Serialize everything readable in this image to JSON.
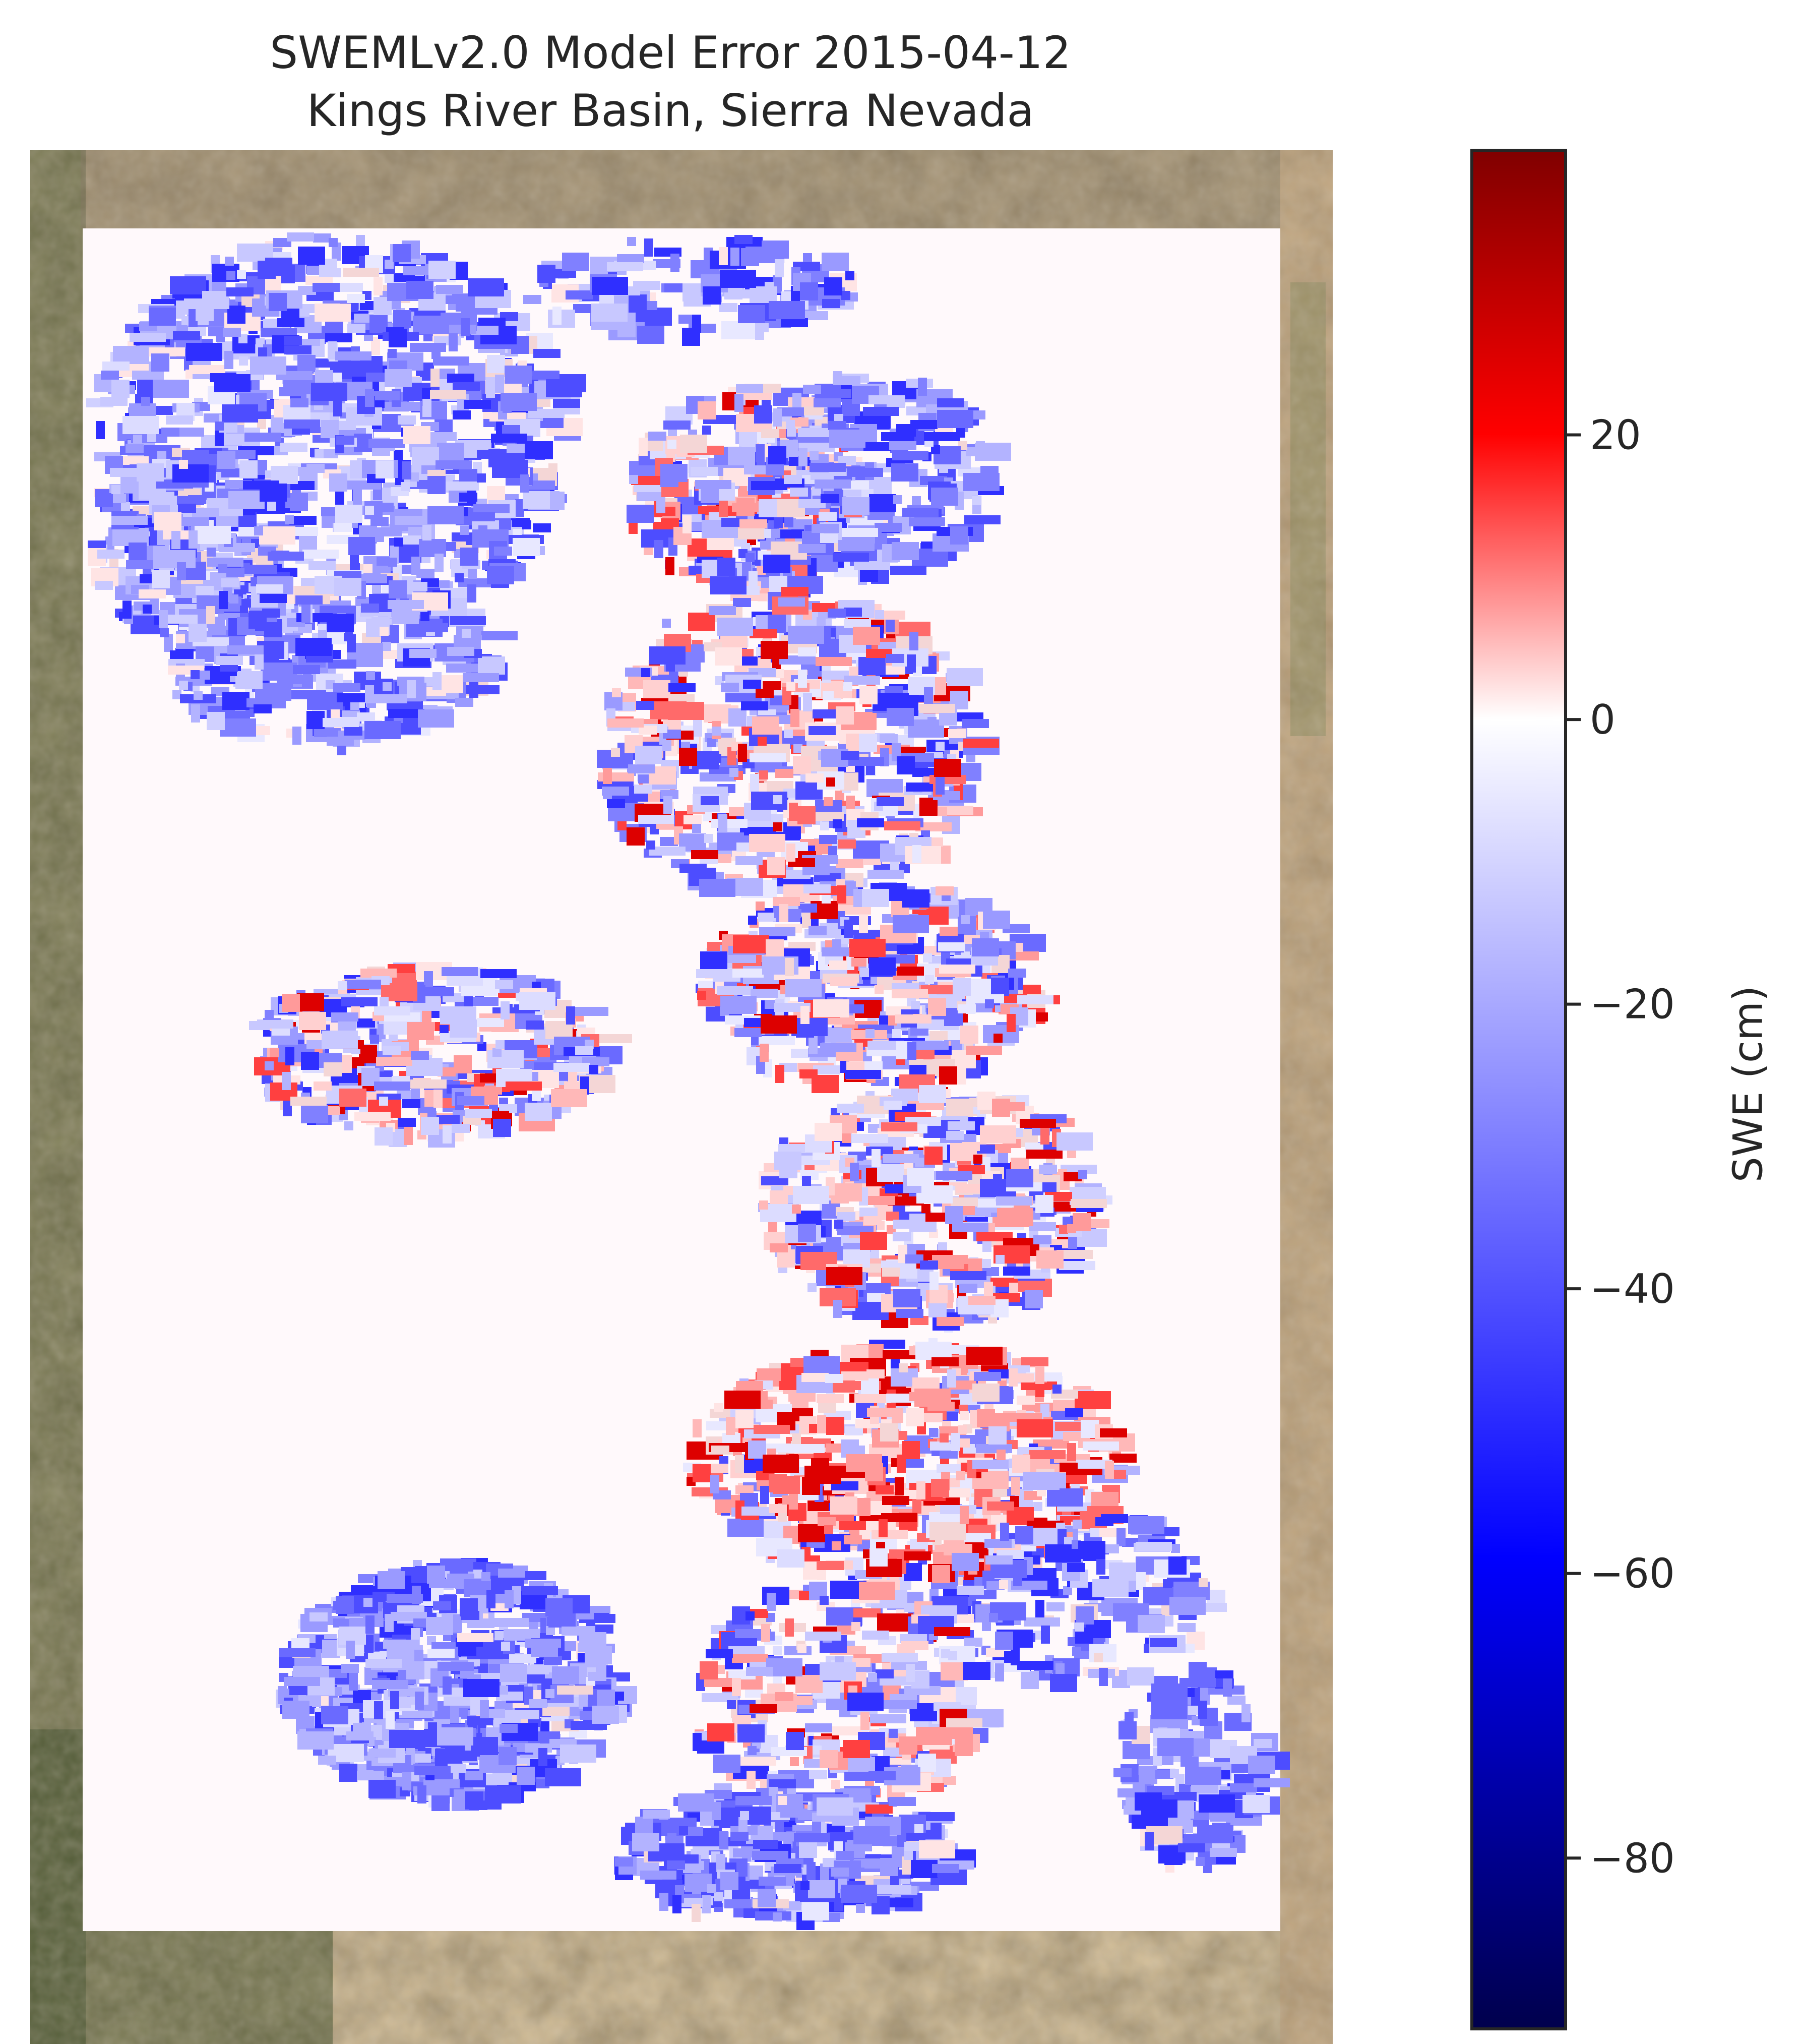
{
  "figure": {
    "title_line1": "SWEMLv2.0 Model Error 2015-04-12",
    "title_line2": "Kings River Basin, Sierra Nevada"
  },
  "map": {
    "basemap": "satellite imagery (mountain terrain, brown/tan valleys, green forested slopes)",
    "overlay": "gridded SWE error raster, mostly white (near zero) background with blue negative clusters on the west/north and southwest and red/white positive speckle in the central-east band"
  },
  "colorbar": {
    "label": "SWE (cm)",
    "colormap": "seismic",
    "vmin": -92,
    "vmax": 40,
    "ticks": [
      20,
      0,
      -20,
      -40,
      -60,
      -80
    ],
    "tick_labels": [
      "20",
      "0",
      "−20",
      "−40",
      "−60",
      "−80"
    ],
    "colors": {
      "min": "#00004c",
      "low": "#0000ff",
      "zero": "#ffffff",
      "high": "#ff0000",
      "max": "#800000"
    }
  }
}
